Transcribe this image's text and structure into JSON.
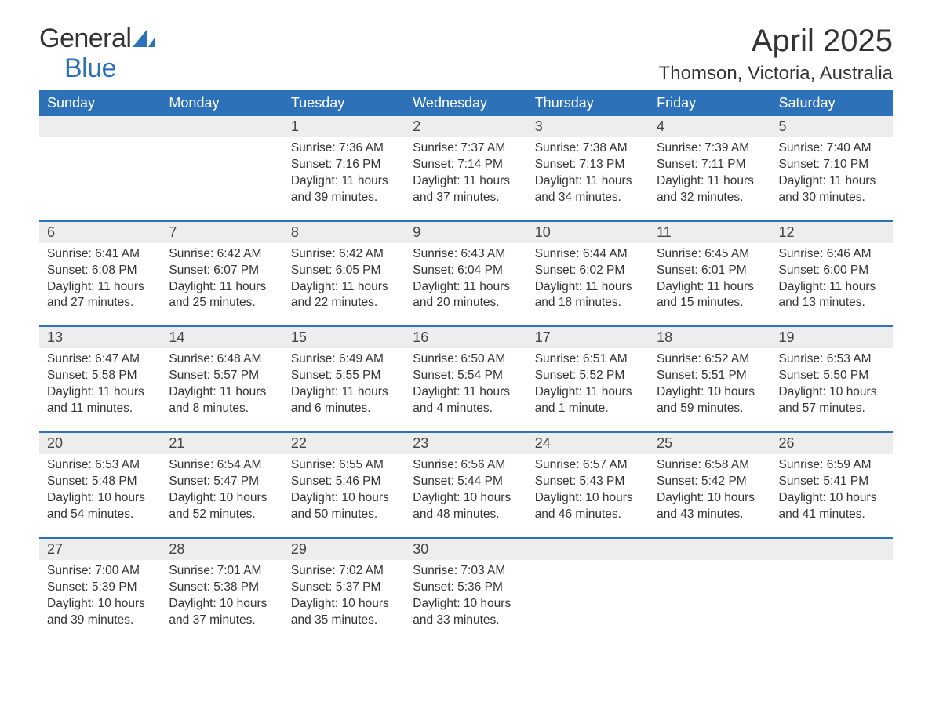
{
  "brand": {
    "part1": "General",
    "part2": "Blue",
    "brand_color": "#2d71b8"
  },
  "title": "April 2025",
  "location": "Thomson, Victoria, Australia",
  "colors": {
    "header_bg": "#2d71b8",
    "header_text": "#ffffff",
    "daynum_bg": "#ededed",
    "row_divider": "#2d71b8",
    "body_text": "#333333",
    "page_bg": "#ffffff"
  },
  "typography": {
    "title_fontsize": 40,
    "location_fontsize": 24,
    "dayheader_fontsize": 18,
    "daynum_fontsize": 18,
    "body_fontsize": 15.5
  },
  "day_headers": [
    "Sunday",
    "Monday",
    "Tuesday",
    "Wednesday",
    "Thursday",
    "Friday",
    "Saturday"
  ],
  "weeks": [
    [
      null,
      null,
      {
        "n": "1",
        "sunrise": "7:36 AM",
        "sunset": "7:16 PM",
        "daylight": "11 hours and 39 minutes."
      },
      {
        "n": "2",
        "sunrise": "7:37 AM",
        "sunset": "7:14 PM",
        "daylight": "11 hours and 37 minutes."
      },
      {
        "n": "3",
        "sunrise": "7:38 AM",
        "sunset": "7:13 PM",
        "daylight": "11 hours and 34 minutes."
      },
      {
        "n": "4",
        "sunrise": "7:39 AM",
        "sunset": "7:11 PM",
        "daylight": "11 hours and 32 minutes."
      },
      {
        "n": "5",
        "sunrise": "7:40 AM",
        "sunset": "7:10 PM",
        "daylight": "11 hours and 30 minutes."
      }
    ],
    [
      {
        "n": "6",
        "sunrise": "6:41 AM",
        "sunset": "6:08 PM",
        "daylight": "11 hours and 27 minutes."
      },
      {
        "n": "7",
        "sunrise": "6:42 AM",
        "sunset": "6:07 PM",
        "daylight": "11 hours and 25 minutes."
      },
      {
        "n": "8",
        "sunrise": "6:42 AM",
        "sunset": "6:05 PM",
        "daylight": "11 hours and 22 minutes."
      },
      {
        "n": "9",
        "sunrise": "6:43 AM",
        "sunset": "6:04 PM",
        "daylight": "11 hours and 20 minutes."
      },
      {
        "n": "10",
        "sunrise": "6:44 AM",
        "sunset": "6:02 PM",
        "daylight": "11 hours and 18 minutes."
      },
      {
        "n": "11",
        "sunrise": "6:45 AM",
        "sunset": "6:01 PM",
        "daylight": "11 hours and 15 minutes."
      },
      {
        "n": "12",
        "sunrise": "6:46 AM",
        "sunset": "6:00 PM",
        "daylight": "11 hours and 13 minutes."
      }
    ],
    [
      {
        "n": "13",
        "sunrise": "6:47 AM",
        "sunset": "5:58 PM",
        "daylight": "11 hours and 11 minutes."
      },
      {
        "n": "14",
        "sunrise": "6:48 AM",
        "sunset": "5:57 PM",
        "daylight": "11 hours and 8 minutes."
      },
      {
        "n": "15",
        "sunrise": "6:49 AM",
        "sunset": "5:55 PM",
        "daylight": "11 hours and 6 minutes."
      },
      {
        "n": "16",
        "sunrise": "6:50 AM",
        "sunset": "5:54 PM",
        "daylight": "11 hours and 4 minutes."
      },
      {
        "n": "17",
        "sunrise": "6:51 AM",
        "sunset": "5:52 PM",
        "daylight": "11 hours and 1 minute."
      },
      {
        "n": "18",
        "sunrise": "6:52 AM",
        "sunset": "5:51 PM",
        "daylight": "10 hours and 59 minutes."
      },
      {
        "n": "19",
        "sunrise": "6:53 AM",
        "sunset": "5:50 PM",
        "daylight": "10 hours and 57 minutes."
      }
    ],
    [
      {
        "n": "20",
        "sunrise": "6:53 AM",
        "sunset": "5:48 PM",
        "daylight": "10 hours and 54 minutes."
      },
      {
        "n": "21",
        "sunrise": "6:54 AM",
        "sunset": "5:47 PM",
        "daylight": "10 hours and 52 minutes."
      },
      {
        "n": "22",
        "sunrise": "6:55 AM",
        "sunset": "5:46 PM",
        "daylight": "10 hours and 50 minutes."
      },
      {
        "n": "23",
        "sunrise": "6:56 AM",
        "sunset": "5:44 PM",
        "daylight": "10 hours and 48 minutes."
      },
      {
        "n": "24",
        "sunrise": "6:57 AM",
        "sunset": "5:43 PM",
        "daylight": "10 hours and 46 minutes."
      },
      {
        "n": "25",
        "sunrise": "6:58 AM",
        "sunset": "5:42 PM",
        "daylight": "10 hours and 43 minutes."
      },
      {
        "n": "26",
        "sunrise": "6:59 AM",
        "sunset": "5:41 PM",
        "daylight": "10 hours and 41 minutes."
      }
    ],
    [
      {
        "n": "27",
        "sunrise": "7:00 AM",
        "sunset": "5:39 PM",
        "daylight": "10 hours and 39 minutes."
      },
      {
        "n": "28",
        "sunrise": "7:01 AM",
        "sunset": "5:38 PM",
        "daylight": "10 hours and 37 minutes."
      },
      {
        "n": "29",
        "sunrise": "7:02 AM",
        "sunset": "5:37 PM",
        "daylight": "10 hours and 35 minutes."
      },
      {
        "n": "30",
        "sunrise": "7:03 AM",
        "sunset": "5:36 PM",
        "daylight": "10 hours and 33 minutes."
      },
      null,
      null,
      null
    ]
  ],
  "labels": {
    "sunrise": "Sunrise: ",
    "sunset": "Sunset: ",
    "daylight": "Daylight: "
  }
}
